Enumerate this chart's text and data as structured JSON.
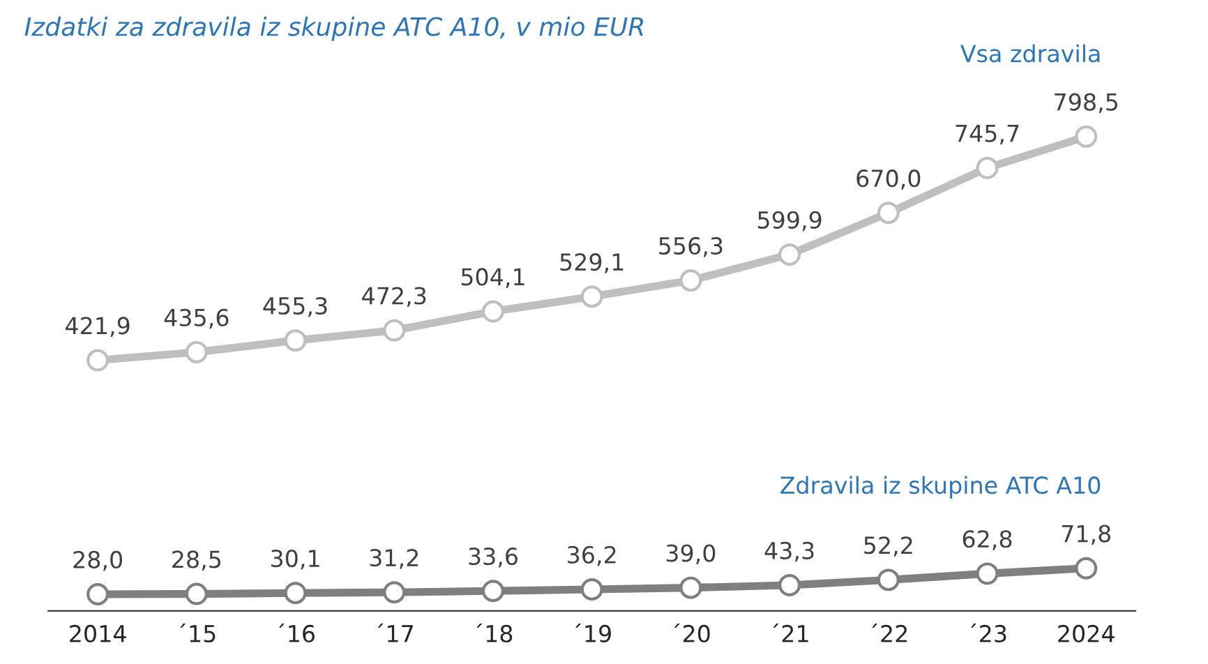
{
  "chart_data": {
    "type": "line",
    "title": "Izdatki za zdravila iz skupine ATC A10, v mio EUR",
    "categories": [
      "2014",
      "´15",
      "´16",
      "´17",
      "´18",
      "´19",
      "´20",
      "´21",
      "´22",
      "´23",
      "2024"
    ],
    "series": [
      {
        "name": "Vsa zdravila",
        "color": "#bfbfbf",
        "values": [
          421.9,
          435.6,
          455.3,
          472.3,
          504.1,
          529.1,
          556.3,
          599.9,
          670.0,
          745.7,
          798.5
        ],
        "value_labels": [
          "421,9",
          "435,6",
          "455,3",
          "472,3",
          "504,1",
          "529,1",
          "556,3",
          "599,9",
          "670,0",
          "745,7",
          "798,5"
        ]
      },
      {
        "name": "Zdravila iz skupine ATC A10",
        "color": "#7f7f7f",
        "values": [
          28.0,
          28.5,
          30.1,
          31.2,
          33.6,
          36.2,
          39.0,
          43.3,
          52.2,
          62.8,
          71.8
        ],
        "value_labels": [
          "28,0",
          "28,5",
          "30,1",
          "31,2",
          "33,6",
          "36,2",
          "39,0",
          "43,3",
          "52,2",
          "62,8",
          "71,8"
        ]
      }
    ],
    "tick_labels": "x",
    "marker": "circle",
    "line_style": "solid",
    "grid": false,
    "legend": false
  }
}
